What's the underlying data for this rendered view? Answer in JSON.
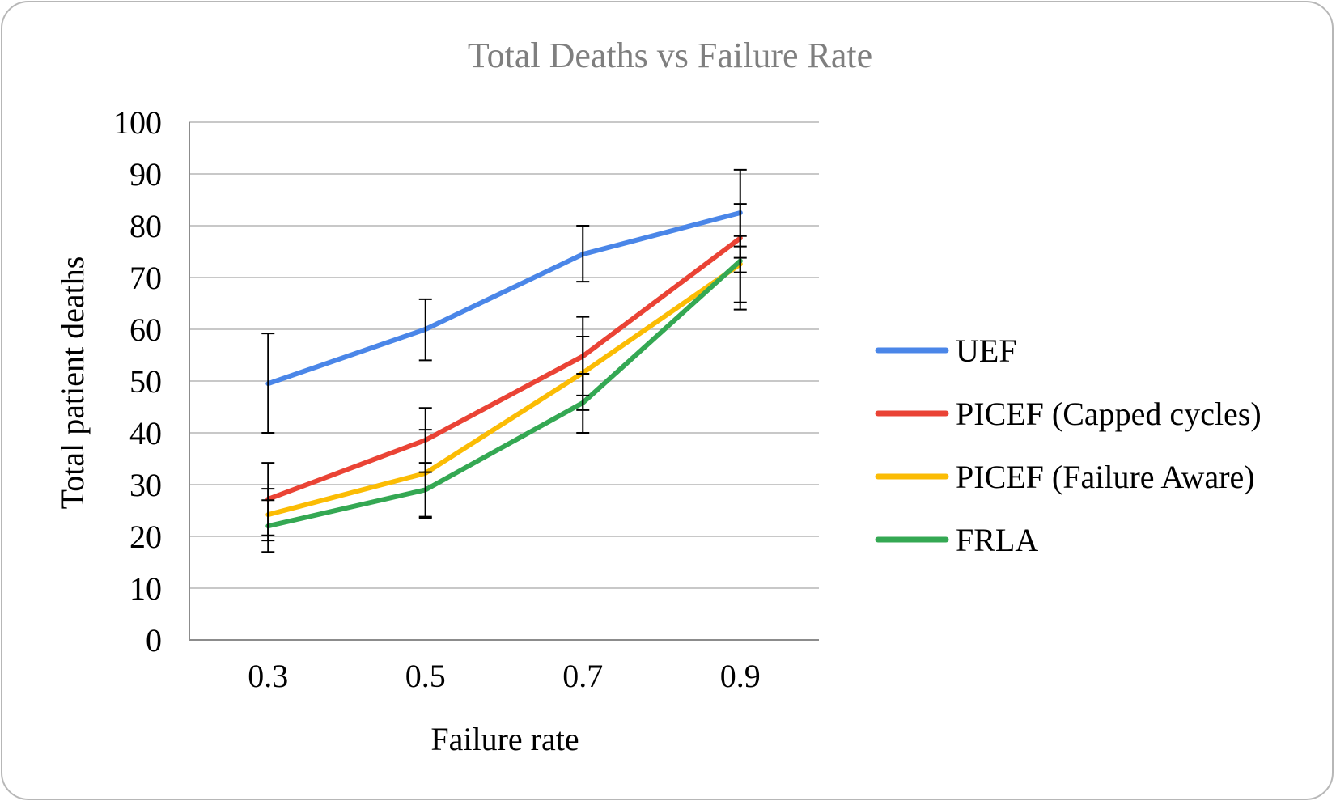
{
  "chart_data": {
    "type": "line",
    "title": "Total Deaths vs Failure Rate",
    "xlabel": "Failure rate",
    "ylabel": "Total patient deaths",
    "categories": [
      "0.3",
      "0.5",
      "0.7",
      "0.9"
    ],
    "ylim": [
      0,
      100
    ],
    "yticks": [
      "0",
      "10",
      "20",
      "30",
      "40",
      "50",
      "60",
      "70",
      "80",
      "90",
      "100"
    ],
    "grid": true,
    "legend_position": "right",
    "series": [
      {
        "name": "UEF",
        "color": "#4a86e8",
        "values": [
          49.5,
          60,
          74.5,
          82.5
        ],
        "error_low": [
          40,
          54,
          69.2,
          73.8
        ],
        "error_high": [
          59.2,
          65.8,
          80,
          90.8
        ]
      },
      {
        "name": "PICEF (Capped cycles)",
        "color": "#ea4335",
        "values": [
          27.2,
          38.6,
          54.8,
          77.6
        ],
        "error_low": [
          20.2,
          32.4,
          47.2,
          71.0
        ],
        "error_high": [
          34.2,
          44.8,
          62.4,
          84.2
        ]
      },
      {
        "name": "PICEF (Failure Aware)",
        "color": "#fbbc04",
        "values": [
          24.2,
          32.2,
          51.6,
          72.6
        ],
        "error_low": [
          19.2,
          23.8,
          44.4,
          65.2
        ],
        "error_high": [
          29.2,
          40.6,
          58.6,
          78.0
        ]
      },
      {
        "name": "FRLA",
        "color": "#34a853",
        "values": [
          22.0,
          29.0,
          45.8,
          73.2
        ],
        "error_low": [
          17.0,
          23.6,
          40.0,
          63.8
        ],
        "error_high": [
          27.0,
          34.2,
          51.4,
          76.0
        ]
      }
    ]
  }
}
